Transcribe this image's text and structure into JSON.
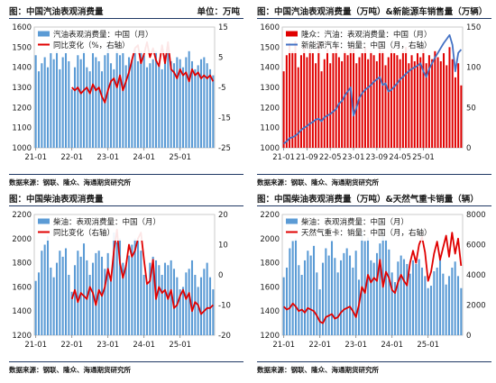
{
  "page": {
    "source_text": "数据来源：钢联、隆众、海通期货研究所"
  },
  "panels": [
    {
      "title": "图：中国汽油表观消费量",
      "unit": "单位：万吨"
    },
    {
      "title": "图：中国汽油表观消费量（万吨）&新能源车销售量（万辆）",
      "unit": ""
    },
    {
      "title": "图：中国柴油表观消费量",
      "unit": ""
    },
    {
      "title": "图：中国柴油表观消费量（万吨）&天然气重卡销量（辆）",
      "unit": ""
    }
  ],
  "chart_data": [
    {
      "type": "bar",
      "series": [
        {
          "name": "汽油表观消费量：中国（月）",
          "kind": "bar",
          "axis": "left",
          "color": "#5b9bd5",
          "values": [
            1460,
            1380,
            1420,
            1450,
            1400,
            1470,
            1440,
            1480,
            1390,
            1450,
            1470,
            1430,
            1290,
            1400,
            1460,
            1440,
            1480,
            1400,
            1380,
            1470,
            1450,
            1430,
            1380,
            1460,
            1500,
            1420,
            1390,
            1480,
            1460,
            1470,
            1410,
            1450,
            1440,
            1490,
            1430,
            1480,
            1460,
            1400,
            1420,
            1440,
            1480,
            1410,
            1390,
            1460,
            1500,
            1430,
            1420,
            1450,
            1440,
            1400,
            1450,
            1480,
            1430,
            1390,
            1410,
            1440,
            1450,
            1420,
            1390,
            1360
          ]
        },
        {
          "name": "同比变化（%，右轴）",
          "kind": "line",
          "axis": "right",
          "color": "#e00000",
          "start_index": 12,
          "values": [
            -5,
            -6,
            -5,
            -7,
            -6,
            -5,
            -7,
            -4,
            -6,
            -5,
            -8,
            -10,
            -6,
            -3,
            -2,
            -5,
            -1,
            -6,
            -3,
            0,
            4,
            8,
            9,
            3,
            6,
            10,
            5,
            8,
            4,
            2,
            9,
            3,
            10,
            1,
            0,
            -2,
            1,
            -1,
            0,
            -3,
            1,
            -1,
            0,
            -2,
            -1,
            -2,
            -1,
            -3
          ]
        }
      ],
      "x_ticks": [
        "21-01",
        "22-01",
        "23-01",
        "24-01",
        "25-01"
      ],
      "x_tick_index": [
        0,
        12,
        24,
        36,
        48
      ],
      "ylim": [
        1000,
        1600
      ],
      "y_ticks": [
        1000,
        1100,
        1200,
        1300,
        1400,
        1500,
        1600
      ],
      "y2lim": [
        -25,
        15
      ],
      "y2_ticks": [
        -25,
        -15,
        -5,
        5,
        15
      ],
      "legend": "top-left"
    },
    {
      "type": "bar",
      "series": [
        {
          "name": "隆众：汽油：表观消费量：中国（月）",
          "kind": "bar",
          "axis": "left",
          "color": "#e00000",
          "values": [
            1380,
            1460,
            1520,
            1480,
            1530,
            1400,
            1460,
            1500,
            1450,
            1490,
            1470,
            1420,
            1520,
            1380,
            1440,
            1490,
            1420,
            1470,
            1500,
            1450,
            1430,
            1480,
            1460,
            1500,
            1490,
            1420,
            1450,
            1470,
            1500,
            1440,
            1480,
            1460,
            1430,
            1500,
            1480,
            1410,
            1450,
            1490,
            1470,
            1460,
            1440,
            1480,
            1500,
            1420,
            1460,
            1430,
            1470,
            1450,
            1490,
            1420,
            1460,
            1440,
            1480,
            1450,
            1430,
            1470,
            1410,
            1500,
            1440,
            1350,
            1420,
            1310
          ]
        },
        {
          "name": "新能源汽车：销量：中国（月，右轴）",
          "kind": "line",
          "axis": "right",
          "color": "#4472c4",
          "values": [
            5,
            8,
            12,
            13,
            15,
            18,
            22,
            25,
            27,
            30,
            32,
            35,
            36,
            33,
            38,
            40,
            42,
            45,
            48,
            55,
            58,
            65,
            70,
            75,
            40,
            50,
            62,
            68,
            72,
            75,
            78,
            82,
            85,
            88,
            78,
            80,
            70,
            72,
            76,
            80,
            85,
            88,
            92,
            95,
            98,
            100,
            102,
            105,
            95,
            88,
            98,
            105,
            112,
            118,
            124,
            130,
            135,
            140,
            128,
            95,
            118,
            122
          ]
        }
      ],
      "x_ticks": [
        "21-01",
        "21-09",
        "22-05",
        "23-01",
        "23-09",
        "24-05",
        "25-01"
      ],
      "x_tick_index": [
        0,
        8,
        16,
        24,
        32,
        40,
        48
      ],
      "ylim": [
        1000,
        1600
      ],
      "y_ticks": [
        1000,
        1100,
        1200,
        1300,
        1400,
        1500,
        1600
      ],
      "y2lim": [
        0,
        150
      ],
      "y2_ticks": [
        0,
        50,
        100,
        150
      ],
      "legend": "top-left"
    },
    {
      "type": "bar",
      "series": [
        {
          "name": "柴油：表观消费量：中国（月）",
          "kind": "bar",
          "axis": "left",
          "color": "#5b9bd5",
          "values": [
            1650,
            1720,
            1900,
            1950,
            2020,
            1760,
            1680,
            1800,
            1900,
            1850,
            1920,
            1700,
            1560,
            1780,
            1900,
            1850,
            1960,
            1820,
            1700,
            1800,
            1880,
            1900,
            1850,
            1750,
            1880,
            1650,
            2050,
            1970,
            2000,
            1800,
            1780,
            1860,
            1950,
            2000,
            1980,
            1900,
            1700,
            1620,
            1800,
            1850,
            1820,
            1780,
            1700,
            1800,
            1780,
            1820,
            1750,
            1680,
            1580,
            1600,
            1720,
            1750,
            1820,
            1700,
            1600,
            1680,
            1750,
            1800,
            1680,
            1580
          ]
        },
        {
          "name": "同比变化（右轴）",
          "kind": "line",
          "axis": "right",
          "color": "#e00000",
          "start_index": 12,
          "values": [
            -8,
            -5,
            -9,
            -6,
            -7,
            -8,
            -4,
            -6,
            -10,
            -5,
            -7,
            -4,
            2,
            -2,
            8,
            15,
            4,
            -1,
            3,
            10,
            6,
            8,
            12,
            14,
            5,
            -3,
            -2,
            5,
            -8,
            -4,
            -6,
            -5,
            -8,
            -5,
            -11,
            -10,
            -7,
            -5,
            -8,
            -6,
            -12,
            -9,
            -10,
            -13,
            -12,
            -11,
            -11,
            -10
          ]
        }
      ],
      "x_ticks": [
        "21-01",
        "22-01",
        "23-01",
        "24-01",
        "25-01"
      ],
      "x_tick_index": [
        0,
        12,
        24,
        36,
        48
      ],
      "ylim": [
        1200,
        2200
      ],
      "y_ticks": [
        1200,
        1400,
        1600,
        1800,
        2000,
        2200
      ],
      "y2lim": [
        -20,
        20
      ],
      "y2_ticks": [
        -20,
        -10,
        0,
        10,
        20
      ],
      "legend": "top-left"
    },
    {
      "type": "bar",
      "series": [
        {
          "name": "柴油：表观消费量：中国（月）",
          "kind": "bar",
          "axis": "left",
          "color": "#5b9bd5",
          "values": [
            1680,
            1760,
            1920,
            1980,
            2000,
            1780,
            1700,
            1820,
            1900,
            1860,
            1940,
            1720,
            1580,
            1800,
            1920,
            1860,
            1980,
            1840,
            1720,
            1820,
            1880,
            1920,
            1860,
            1760,
            1900,
            1660,
            2060,
            1980,
            2010,
            1820,
            1800,
            1880,
            1960,
            2020,
            1990,
            1910,
            1720,
            1640,
            1810,
            1860,
            1830,
            1790,
            1710,
            1820,
            1790,
            1830,
            1760,
            1690,
            1590,
            1610,
            1730,
            1760,
            1830,
            1710,
            1620,
            1690,
            1760,
            1810,
            1690,
            1590
          ]
        },
        {
          "name": "天然气重卡：销量：中国（月，右轴）",
          "kind": "line",
          "axis": "right",
          "color": "#e00000",
          "values": [
            1900,
            1700,
            1800,
            2100,
            1900,
            1600,
            1700,
            1500,
            1800,
            1700,
            1600,
            1300,
            900,
            800,
            1200,
            1300,
            1400,
            1100,
            1200,
            1500,
            1700,
            1800,
            1900,
            1600,
            1200,
            2000,
            3200,
            2800,
            4000,
            3500,
            3800,
            3600,
            5000,
            3200,
            4200,
            3800,
            3000,
            2800,
            3500,
            4000,
            3600,
            3300,
            4800,
            5600,
            4800,
            6000,
            6500,
            5500,
            3600,
            4200,
            5400,
            6200,
            5000,
            5800,
            6600,
            5200,
            6800,
            5400,
            6400,
            4600
          ]
        }
      ],
      "x_ticks": [
        "21-01",
        "22-01",
        "23-01",
        "24-01",
        "25-01"
      ],
      "x_tick_index": [
        0,
        12,
        24,
        36,
        48
      ],
      "ylim": [
        1200,
        2200
      ],
      "y_ticks": [
        1200,
        1400,
        1600,
        1800,
        2000,
        2200
      ],
      "y2lim": [
        0,
        8000
      ],
      "y2_ticks": [
        0,
        2000,
        4000,
        6000,
        8000
      ],
      "legend": "top-left"
    }
  ]
}
